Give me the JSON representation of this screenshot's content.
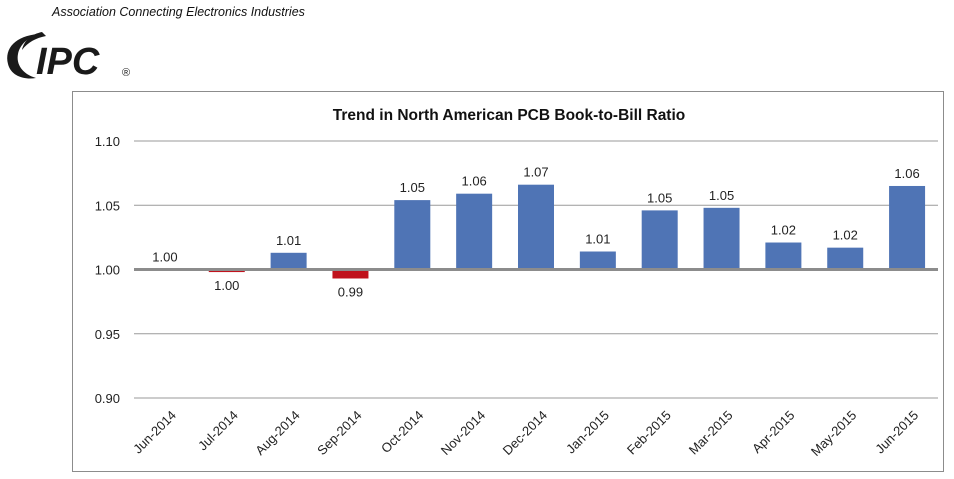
{
  "header": {
    "tagline": "Association Connecting Electronics Industries",
    "logo_text": "IPC",
    "logo_mark": "®"
  },
  "chart_data": {
    "type": "bar",
    "title": "Trend in North American PCB Book-to-Bill Ratio",
    "xlabel": "",
    "ylabel": "",
    "ylim": [
      0.9,
      1.1
    ],
    "yticks": [
      "0.90",
      "0.95",
      "1.00",
      "1.05",
      "1.10"
    ],
    "baseline": 1.0,
    "grid": true,
    "colors": {
      "positive": "#4f74b5",
      "negative": "#c0121c",
      "baseline": "#8c8c8c",
      "grid": "#9a9a9a"
    },
    "categories": [
      "Jun-2014",
      "Jul-2014",
      "Aug-2014",
      "Sep-2014",
      "Oct-2014",
      "Nov-2014",
      "Dec-2014",
      "Jan-2015",
      "Feb-2015",
      "Mar-2015",
      "Apr-2015",
      "May-2015",
      "Jun-2015"
    ],
    "values": [
      1.0,
      0.998,
      1.013,
      0.993,
      1.054,
      1.059,
      1.066,
      1.014,
      1.046,
      1.048,
      1.021,
      1.017,
      1.065
    ],
    "data_labels": [
      "1.00",
      "1.00",
      "1.01",
      "0.99",
      "1.05",
      "1.06",
      "1.07",
      "1.01",
      "1.05",
      "1.05",
      "1.02",
      "1.02",
      "1.06"
    ]
  }
}
